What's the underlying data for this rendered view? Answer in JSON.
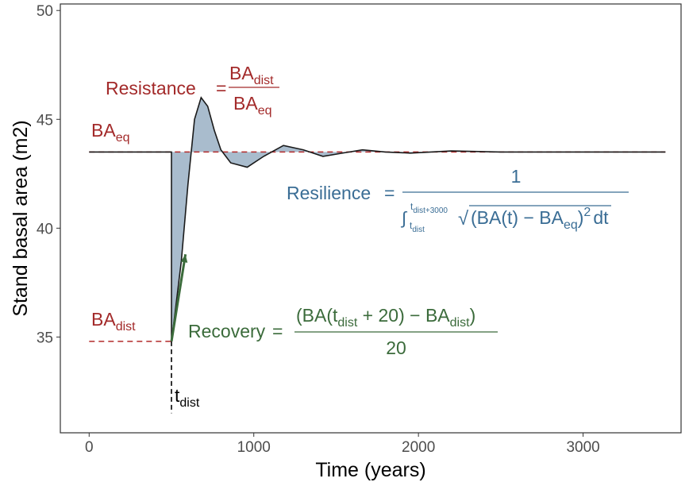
{
  "chart_data": {
    "type": "line",
    "x_label": "Time (years)",
    "y_label": "Stand basal area (m2)",
    "xlim": [
      -175,
      3595
    ],
    "ylim": [
      30.6,
      50.3
    ],
    "xticks": [
      0,
      1000,
      2000,
      3000
    ],
    "yticks": [
      35,
      40,
      45,
      50
    ],
    "x": [
      0,
      500,
      500,
      520,
      560,
      600,
      640,
      680,
      720,
      760,
      800,
      860,
      960,
      1060,
      1180,
      1300,
      1420,
      1540,
      1660,
      1800,
      1950,
      2200,
      2500,
      3500
    ],
    "values": [
      43.5,
      43.5,
      34.8,
      36.0,
      38.5,
      42.0,
      45.0,
      46.0,
      45.6,
      44.5,
      43.6,
      43.0,
      42.8,
      43.3,
      43.8,
      43.6,
      43.3,
      43.45,
      43.6,
      43.5,
      43.45,
      43.55,
      43.5,
      43.5
    ],
    "color": "#1a1a1a",
    "area_color": "#a9bccd",
    "equilibrium": 43.5,
    "disturbance_level": 34.8,
    "disturbance_time": 500,
    "disturbance_line_bottom": 31.5,
    "reference_color": "#b22a2a",
    "arrow": {
      "x": [
        500,
        585
      ],
      "y": [
        34.8,
        38.8
      ],
      "color": "#3b6b3b"
    },
    "annotations": {
      "eq_label": [
        "BA",
        "eq"
      ],
      "dist_label": [
        "BA",
        "dist"
      ],
      "t_dist": [
        "t",
        "dist"
      ],
      "resistance": {
        "name": "Resistance",
        "equals": "=",
        "numerator": [
          "BA",
          "dist"
        ],
        "denominator": [
          "BA",
          "eq"
        ]
      },
      "resilience": {
        "name": "Resilience",
        "equals": "=",
        "numerator": "1",
        "integral": "∫",
        "upper": [
          "t",
          "dist+3000"
        ],
        "lower": [
          "t",
          "dist"
        ],
        "root": "√",
        "body": [
          "(BA(t) − BA",
          "eq",
          ")",
          "2",
          "dt"
        ]
      },
      "recovery": {
        "name": "Recovery",
        "equals": "=",
        "numerator": [
          "(BA(t",
          "dist",
          " + 20) − BA",
          "dist",
          ")"
        ],
        "denominator": "20"
      }
    }
  }
}
